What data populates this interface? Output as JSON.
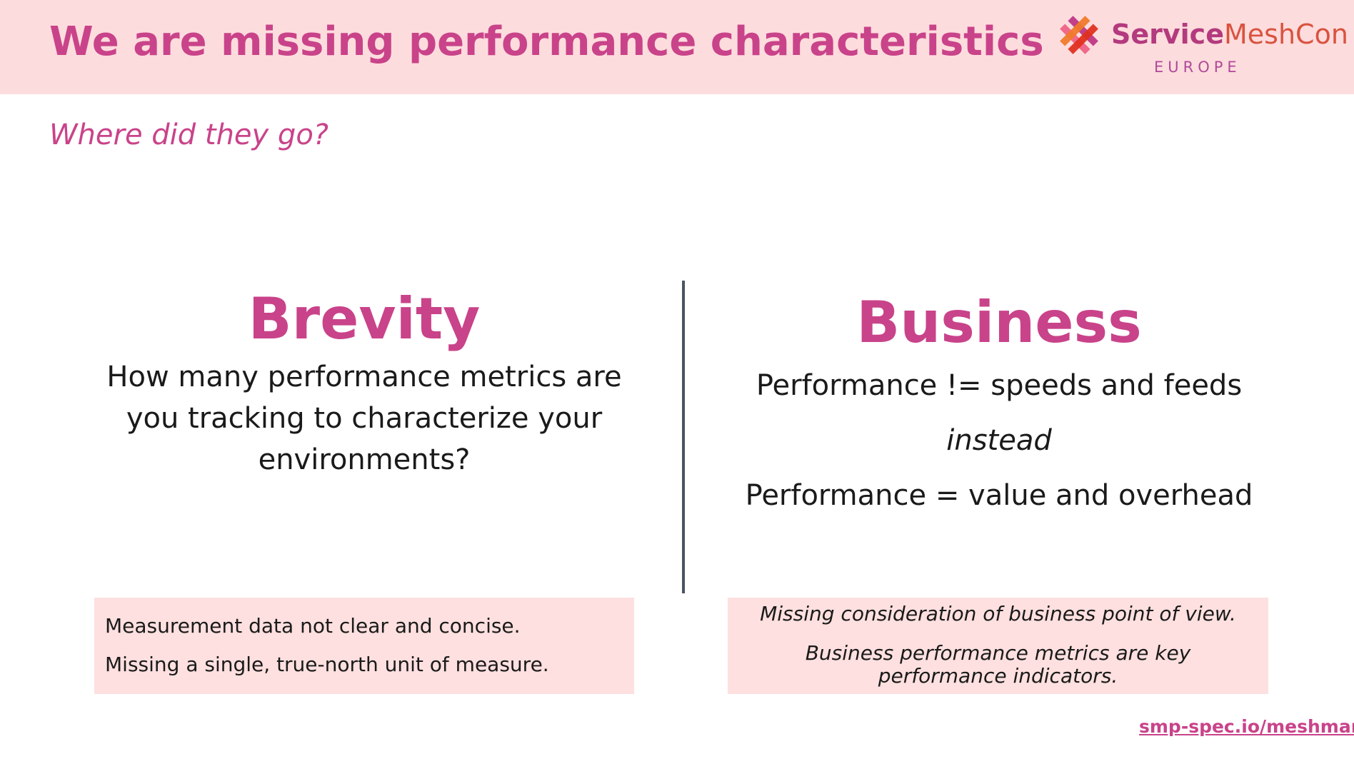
{
  "header": {
    "title": "We are missing performance characteristics",
    "logo": {
      "brand_bold": "Service",
      "brand_light": "MeshCon",
      "region": "EUROPE"
    }
  },
  "subtitle": "Where did they go?",
  "left": {
    "heading": "Brevity",
    "lines": [
      "How many performance metrics are",
      "you tracking to characterize your",
      "environments?"
    ],
    "note": [
      "Measurement data not clear and concise.",
      "Missing a single, true-north unit of measure."
    ]
  },
  "right": {
    "heading": "Business",
    "lines": [
      "Performance != speeds and feeds",
      "instead",
      "Performance = value and overhead"
    ],
    "note": [
      "Missing consideration of business point of view.",
      "Business performance metrics are key",
      "performance indicators."
    ]
  },
  "footer": {
    "link": "smp-spec.io/meshmark"
  },
  "colors": {
    "accent": "#c9438a",
    "band": "#fddcdd",
    "box": "#fde0df"
  }
}
